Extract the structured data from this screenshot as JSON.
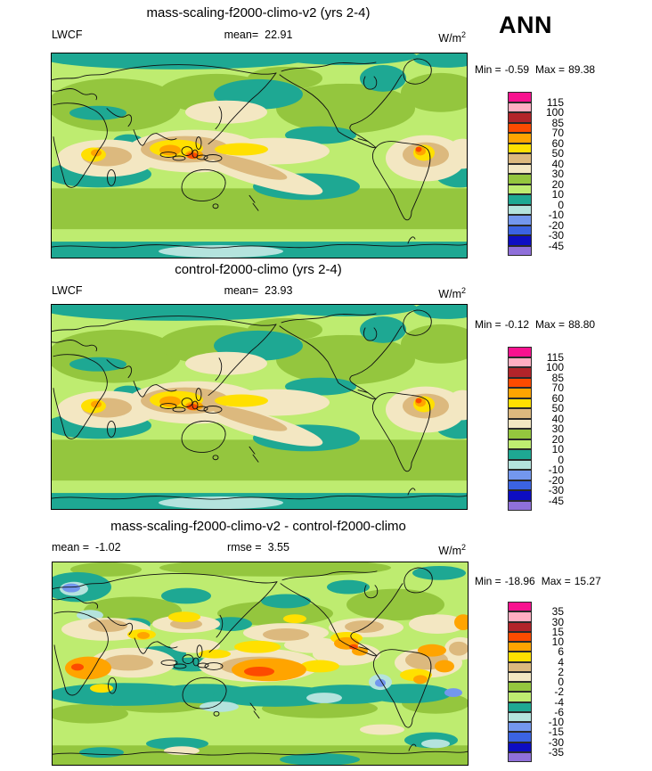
{
  "figure": {
    "season_label": "ANN",
    "variable": "LWCF",
    "units_base": "W/m",
    "units_exp": "2"
  },
  "palette": {
    "colors_top_to_bottom": [
      "#F8128F",
      "#FFAEC2",
      "#B2242A",
      "#FD4B00",
      "#FFA400",
      "#FFE000",
      "#DCB97E",
      "#F3E7C2",
      "#94C63E",
      "#BEEC70",
      "#1EA893",
      "#B4E3DD",
      "#7397EE",
      "#3B63E2",
      "#0D0DC2",
      "#8F70DA"
    ]
  },
  "panels": [
    {
      "title": "mass-scaling-f2000-climo-v2 (yrs 2-4)",
      "stats": {
        "left_label": "LWCF",
        "left_value": "",
        "center_label": "mean=",
        "center_value": "22.91",
        "units_base": "W/m",
        "units_exp": "2"
      },
      "range": {
        "min_label": "Min =",
        "min_value": "-0.59",
        "max_label": "Max =",
        "max_value": "89.38"
      },
      "colorbar": {
        "levels": [
          "115",
          "100",
          "85",
          "70",
          "60",
          "50",
          "40",
          "30",
          "20",
          "10",
          "0",
          "-10",
          "-20",
          "-30",
          "-45"
        ],
        "colors": [
          "#F8128F",
          "#FFAEC2",
          "#B2242A",
          "#FD4B00",
          "#FFA400",
          "#FFE000",
          "#DCB97E",
          "#F3E7C2",
          "#94C63E",
          "#BEEC70",
          "#1EA893",
          "#B4E3DD",
          "#7397EE",
          "#3B63E2",
          "#0D0DC2",
          "#8F70DA"
        ]
      }
    },
    {
      "title": "control-f2000-climo (yrs 2-4)",
      "stats": {
        "left_label": "LWCF",
        "left_value": "",
        "center_label": "mean=",
        "center_value": "23.93",
        "units_base": "W/m",
        "units_exp": "2"
      },
      "range": {
        "min_label": "Min =",
        "min_value": "-0.12",
        "max_label": "Max =",
        "max_value": "88.80"
      },
      "colorbar": {
        "levels": [
          "115",
          "100",
          "85",
          "70",
          "60",
          "50",
          "40",
          "30",
          "20",
          "10",
          "0",
          "-10",
          "-20",
          "-30",
          "-45"
        ],
        "colors": [
          "#F8128F",
          "#FFAEC2",
          "#B2242A",
          "#FD4B00",
          "#FFA400",
          "#FFE000",
          "#DCB97E",
          "#F3E7C2",
          "#94C63E",
          "#BEEC70",
          "#1EA893",
          "#B4E3DD",
          "#7397EE",
          "#3B63E2",
          "#0D0DC2",
          "#8F70DA"
        ]
      }
    },
    {
      "title": "mass-scaling-f2000-climo-v2 - control-f2000-climo",
      "stats": {
        "left_label": "mean =",
        "left_value": "-1.02",
        "center_label": "rmse =",
        "center_value": "3.55",
        "units_base": "W/m",
        "units_exp": "2"
      },
      "range": {
        "min_label": "Min =",
        "min_value": "-18.96",
        "max_label": "Max =",
        "max_value": "15.27"
      },
      "colorbar": {
        "levels": [
          "35",
          "30",
          "15",
          "10",
          "6",
          "4",
          "2",
          "0",
          "-2",
          "-4",
          "-6",
          "-10",
          "-15",
          "-30",
          "-35"
        ],
        "colors": [
          "#F8128F",
          "#FFAEC2",
          "#B2242A",
          "#FD4B00",
          "#FFA400",
          "#FFE000",
          "#DCB97E",
          "#F3E7C2",
          "#94C63E",
          "#BEEC70",
          "#1EA893",
          "#B4E3DD",
          "#7397EE",
          "#3B63E2",
          "#0D0DC2",
          "#8F70DA"
        ]
      }
    }
  ],
  "chart_data": [
    {
      "type": "heatmap",
      "subtype": "global-latlon-contour-map",
      "title": "mass-scaling-f2000-climo-v2 (yrs 2-4)",
      "variable": "LWCF",
      "season": "ANN",
      "units": "W/m^2",
      "mean": 22.91,
      "min": -0.59,
      "max": 89.38,
      "contour_levels": [
        115,
        100,
        85,
        70,
        60,
        50,
        40,
        30,
        20,
        10,
        0,
        -10,
        -20,
        -30,
        -45
      ],
      "palette_top_to_bottom": [
        "#F8128F",
        "#FFAEC2",
        "#B2242A",
        "#FD4B00",
        "#FFA400",
        "#FFE000",
        "#DCB97E",
        "#F3E7C2",
        "#94C63E",
        "#BEEC70",
        "#1EA893",
        "#B4E3DD",
        "#7397EE",
        "#3B63E2",
        "#0D0DC2",
        "#8F70DA"
      ],
      "legend_position": "right",
      "notes": "Global map 0-360E; high values (yellow/orange/red 50-85) over Indonesia/west Pacific warm pool, Congo, and Colombia/Amazon; teal (0-10) over Arctic, NE Pacific, subtropical oceans and Antarctic coast; pale blue (-10-0) patch near Antarctica."
    },
    {
      "type": "heatmap",
      "subtype": "global-latlon-contour-map",
      "title": "control-f2000-climo (yrs 2-4)",
      "variable": "LWCF",
      "season": "ANN",
      "units": "W/m^2",
      "mean": 23.93,
      "min": -0.12,
      "max": 88.8,
      "contour_levels": [
        115,
        100,
        85,
        70,
        60,
        50,
        40,
        30,
        20,
        10,
        0,
        -10,
        -20,
        -30,
        -45
      ],
      "palette_top_to_bottom": [
        "#F8128F",
        "#FFAEC2",
        "#B2242A",
        "#FD4B00",
        "#FFA400",
        "#FFE000",
        "#DCB97E",
        "#F3E7C2",
        "#94C63E",
        "#BEEC70",
        "#1EA893",
        "#B4E3DD",
        "#7397EE",
        "#3B63E2",
        "#0D0DC2",
        "#8F70DA"
      ],
      "legend_position": "right",
      "notes": "Spatial pattern nearly identical to panel 1."
    },
    {
      "type": "heatmap",
      "subtype": "global-latlon-difference-map",
      "title": "mass-scaling-f2000-climo-v2 - control-f2000-climo",
      "variable": "LWCF difference",
      "season": "ANN",
      "units": "W/m^2",
      "mean": -1.02,
      "rmse": 3.55,
      "min": -18.96,
      "max": 15.27,
      "contour_levels": [
        35,
        30,
        15,
        10,
        6,
        4,
        2,
        0,
        -2,
        -4,
        -6,
        -10,
        -15,
        -30,
        -35
      ],
      "palette_top_to_bottom": [
        "#F8128F",
        "#FFAEC2",
        "#B2242A",
        "#FD4B00",
        "#FFA400",
        "#FFE000",
        "#DCB97E",
        "#F3E7C2",
        "#94C63E",
        "#BEEC70",
        "#1EA893",
        "#B4E3DD",
        "#7397EE",
        "#3B63E2",
        "#0D0DC2",
        "#8F70DA"
      ],
      "legend_position": "right",
      "notes": "Mottled difference field: positive (cream/tan/orange/red up to +15) over Africa, central equatorial Pacific, Caribbean and tropical Atlantic/South America; negative (teal/cyan/blue to -19) over southern mid-latitude oceans, equatorial Indian Ocean and scattered northern ocean patches."
    }
  ]
}
